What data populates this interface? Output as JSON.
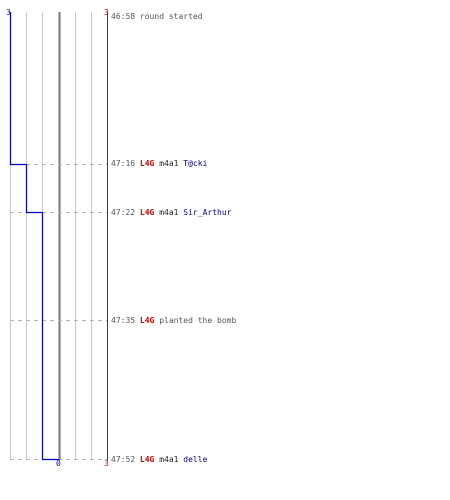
{
  "colors": {
    "ct": "#0000cc",
    "t": "#cc0000",
    "grid": "#c8c8c8",
    "center": "#777777",
    "dash": "#b4b4b4"
  },
  "axis": {
    "top_left": "3",
    "top_right": "3",
    "bottom_center": "0",
    "bottom_right": "3"
  },
  "events": [
    {
      "time": "46:58",
      "text": "round started"
    },
    {
      "time": "47:16",
      "team": "L4G",
      "weapon": "m4a1",
      "victim": "T@cki"
    },
    {
      "time": "47:22",
      "team": "L4G",
      "weapon": "m4a1",
      "victim": "Sir_Arthur"
    },
    {
      "time": "47:35",
      "team": "L4G",
      "text": "planted the bomb"
    },
    {
      "time": "47:52",
      "team": "L4G",
      "weapon": "m4a1",
      "victim": "delle"
    }
  ]
}
